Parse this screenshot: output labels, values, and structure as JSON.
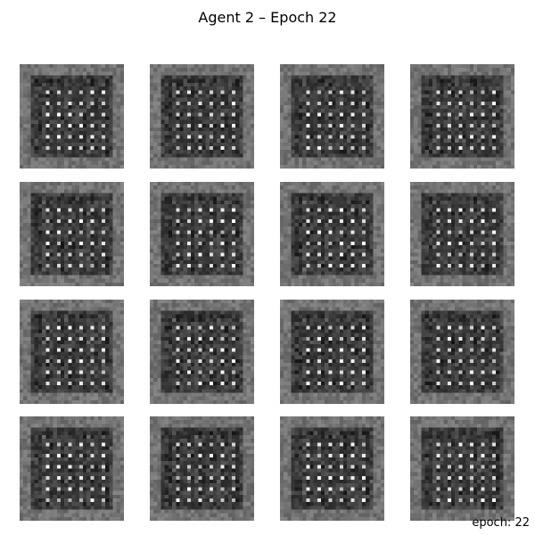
{
  "figure": {
    "title": "Agent 2 – Epoch 22",
    "footer_label": "epoch: 22"
  },
  "grid": {
    "rows": 4,
    "cols": 4,
    "sample_resolution": 28,
    "colormap": "gray"
  }
}
